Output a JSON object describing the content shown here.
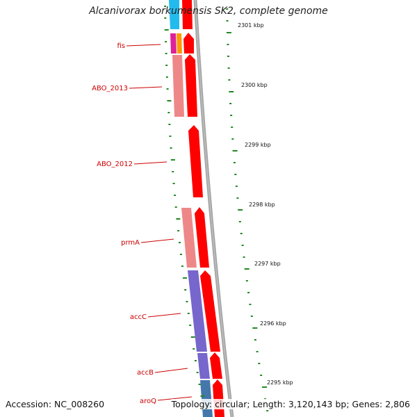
{
  "title": "Alcanivorax borkumensis SK2, complete genome",
  "accession": "Accession: NC_008260",
  "topology": "Topology: circular; Length: 3,120,143 bp; Genes: 2,806",
  "ruler": [
    "2301 kbp",
    "2300 kbp",
    "2299 kbp",
    "2298 kbp",
    "2297 kbp",
    "2296 kbp",
    "2295 kbp"
  ],
  "gene_labels": [
    "fis",
    "ABO_2013",
    "ABO_2012",
    "prmA",
    "accC",
    "accB",
    "aroQ"
  ],
  "colors": {
    "cds_forward": "#ff0000",
    "gene_light": "#ee8888",
    "accC_gene": "#7766cc",
    "aroQ_gene": "#4477aa",
    "cyan_gene": "#22bbee",
    "fis_magenta": "#dd2299",
    "fis_orange": "#ff9900",
    "tick": "#228822",
    "backbone": "#888888",
    "label": "#cc0000"
  }
}
